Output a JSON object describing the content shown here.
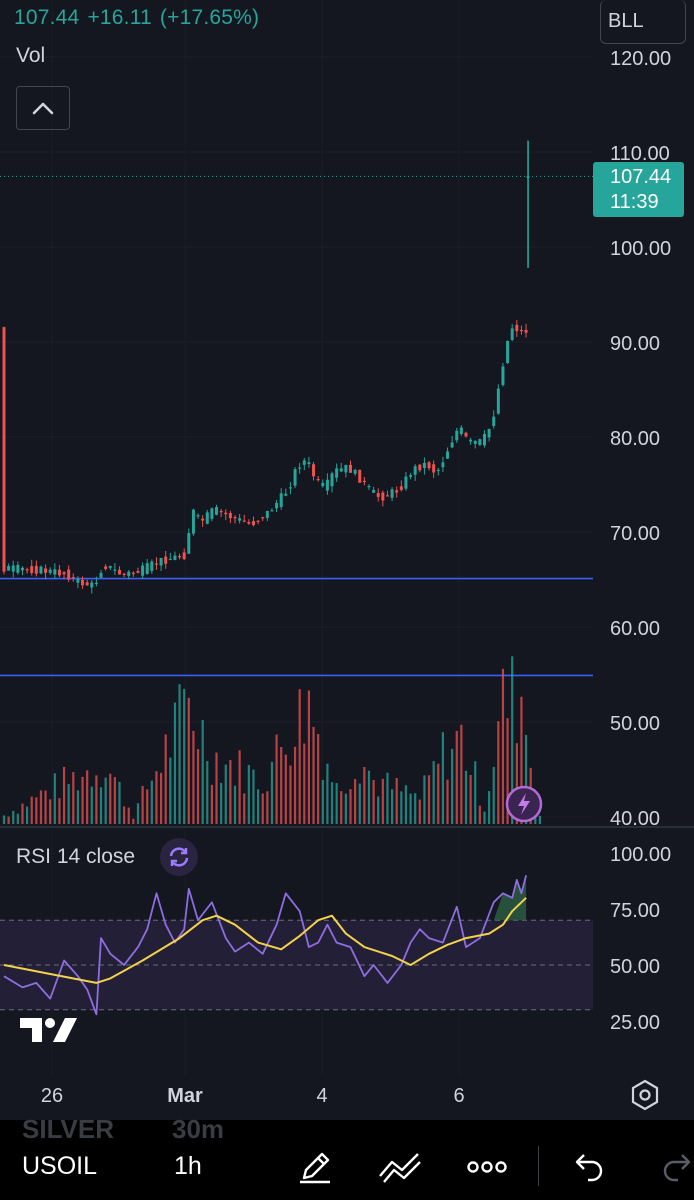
{
  "header": {
    "last": "107.44",
    "change": "+16.11",
    "change_pct": "(+17.65%)",
    "volume_label": "Vol",
    "symbol_button": "BLL"
  },
  "price_badge": {
    "price": "107.44",
    "countdown": "11:39"
  },
  "rsi": {
    "label": "RSI 14 close",
    "ticks": [
      "100.00",
      "75.00",
      "50.00",
      "25.00"
    ]
  },
  "bottom_bar": {
    "ghost_left": "SILVER",
    "ghost_right": "30m",
    "symbol": "USOIL",
    "interval": "1h"
  },
  "icons": {
    "collapse": "chevron-up-icon",
    "rsi": "refresh-icon",
    "logo": "tradingview-logo",
    "settings": "hexagon-settings-icon",
    "bolt": "lightning-icon",
    "draw": "pencil-icon",
    "indicators": "indicators-icon",
    "more": "more-dots-icon",
    "undo": "undo-icon",
    "redo": "redo-icon"
  },
  "colors": {
    "up": "#26a69a",
    "down": "#ef5350",
    "rsi_line": "#8c6ee0",
    "rsi_ma": "#f2d34b",
    "hline": "#3c5ef2"
  },
  "chart_data": {
    "type": "candlestick",
    "title": "",
    "y_axis_ticks": [
      "120.00",
      "110.00",
      "100.00",
      "90.00",
      "80.00",
      "70.00",
      "60.00",
      "50.00",
      "40.00"
    ],
    "ylim": [
      40,
      120
    ],
    "x_axis_ticks": [
      "26",
      "Mar",
      "4",
      "6"
    ],
    "last_price": 107.44,
    "horizontal_lines": [
      65.1,
      54.9
    ],
    "price_path": [
      [
        0,
        66.2
      ],
      [
        8,
        66.0
      ],
      [
        14,
        65.6
      ],
      [
        16,
        64.8
      ],
      [
        20,
        64.3
      ],
      [
        22,
        66.6
      ],
      [
        26,
        65.5
      ],
      [
        30,
        65.9
      ],
      [
        34,
        66.9
      ],
      [
        37,
        67.3
      ],
      [
        40,
        67.6
      ],
      [
        41,
        72.5
      ],
      [
        43,
        71.0
      ],
      [
        46,
        72.4
      ],
      [
        50,
        71.5
      ],
      [
        54,
        70.8
      ],
      [
        58,
        72.2
      ],
      [
        62,
        74.5
      ],
      [
        64,
        77.0
      ],
      [
        66,
        77.6
      ],
      [
        68,
        75.4
      ],
      [
        70,
        74.6
      ],
      [
        72,
        76.4
      ],
      [
        75,
        76.8
      ],
      [
        78,
        75.4
      ],
      [
        80,
        74.2
      ],
      [
        82,
        73.6
      ],
      [
        86,
        74.5
      ],
      [
        89,
        76.6
      ],
      [
        92,
        77.2
      ],
      [
        94,
        76.2
      ],
      [
        95,
        77.0
      ],
      [
        97,
        79.2
      ],
      [
        99,
        81.1
      ],
      [
        101,
        79.4
      ],
      [
        104,
        79.5
      ],
      [
        106,
        81.3
      ],
      [
        107,
        83.6
      ],
      [
        108,
        86.6
      ],
      [
        109,
        89.0
      ],
      [
        110,
        91.2
      ],
      [
        111,
        91.9
      ],
      [
        112,
        90.9
      ],
      [
        113,
        91.2
      ]
    ],
    "last_candle": {
      "open": 107.3,
      "high": 111.2,
      "low": 97.8,
      "close": 107.44
    },
    "volume": {
      "bars": 117,
      "ylim": [
        0,
        100
      ],
      "peaks": [
        [
          0,
          5
        ],
        [
          10,
          20
        ],
        [
          22,
          35
        ],
        [
          28,
          5
        ],
        [
          40,
          70
        ],
        [
          45,
          40
        ],
        [
          56,
          25
        ],
        [
          62,
          55
        ],
        [
          66,
          70
        ],
        [
          72,
          20
        ],
        [
          77,
          40
        ],
        [
          80,
          25
        ],
        [
          90,
          15
        ],
        [
          95,
          40
        ],
        [
          99,
          50
        ],
        [
          104,
          10
        ],
        [
          108,
          70
        ],
        [
          112,
          75
        ],
        [
          115,
          20
        ]
      ]
    },
    "rsi": {
      "ylim": [
        0,
        100
      ],
      "overbought": 70,
      "oversold": 30,
      "rsi_path": [
        [
          0,
          45
        ],
        [
          4,
          40
        ],
        [
          7,
          42
        ],
        [
          10,
          35
        ],
        [
          13,
          52
        ],
        [
          16,
          45
        ],
        [
          18,
          39
        ],
        [
          20,
          28
        ],
        [
          21,
          62
        ],
        [
          23,
          55
        ],
        [
          26,
          50
        ],
        [
          29,
          58
        ],
        [
          31,
          66
        ],
        [
          33,
          82
        ],
        [
          35,
          68
        ],
        [
          37,
          60
        ],
        [
          39,
          66
        ],
        [
          40,
          84
        ],
        [
          42,
          70
        ],
        [
          45,
          78
        ],
        [
          48,
          62
        ],
        [
          50,
          56
        ],
        [
          53,
          60
        ],
        [
          56,
          55
        ],
        [
          59,
          68
        ],
        [
          61,
          82
        ],
        [
          64,
          74
        ],
        [
          66,
          58
        ],
        [
          68,
          60
        ],
        [
          70,
          68
        ],
        [
          72,
          60
        ],
        [
          75,
          58
        ],
        [
          78,
          45
        ],
        [
          80,
          50
        ],
        [
          83,
          42
        ],
        [
          86,
          50
        ],
        [
          88,
          60
        ],
        [
          90,
          66
        ],
        [
          92,
          62
        ],
        [
          95,
          60
        ],
        [
          98,
          76
        ],
        [
          100,
          58
        ],
        [
          103,
          62
        ],
        [
          106,
          78
        ],
        [
          108,
          82
        ],
        [
          110,
          80
        ],
        [
          111,
          88
        ],
        [
          112,
          82
        ],
        [
          113,
          90
        ]
      ],
      "ma_path": [
        [
          0,
          50
        ],
        [
          10,
          46
        ],
        [
          20,
          42
        ],
        [
          23,
          44
        ],
        [
          30,
          52
        ],
        [
          38,
          62
        ],
        [
          43,
          70
        ],
        [
          46,
          72
        ],
        [
          50,
          68
        ],
        [
          55,
          60
        ],
        [
          60,
          57
        ],
        [
          64,
          63
        ],
        [
          68,
          70
        ],
        [
          71,
          72
        ],
        [
          74,
          64
        ],
        [
          78,
          58
        ],
        [
          84,
          54
        ],
        [
          88,
          50
        ],
        [
          92,
          55
        ],
        [
          96,
          59
        ],
        [
          100,
          62
        ],
        [
          105,
          64
        ],
        [
          108,
          68
        ],
        [
          110,
          74
        ],
        [
          113,
          80
        ]
      ]
    }
  }
}
